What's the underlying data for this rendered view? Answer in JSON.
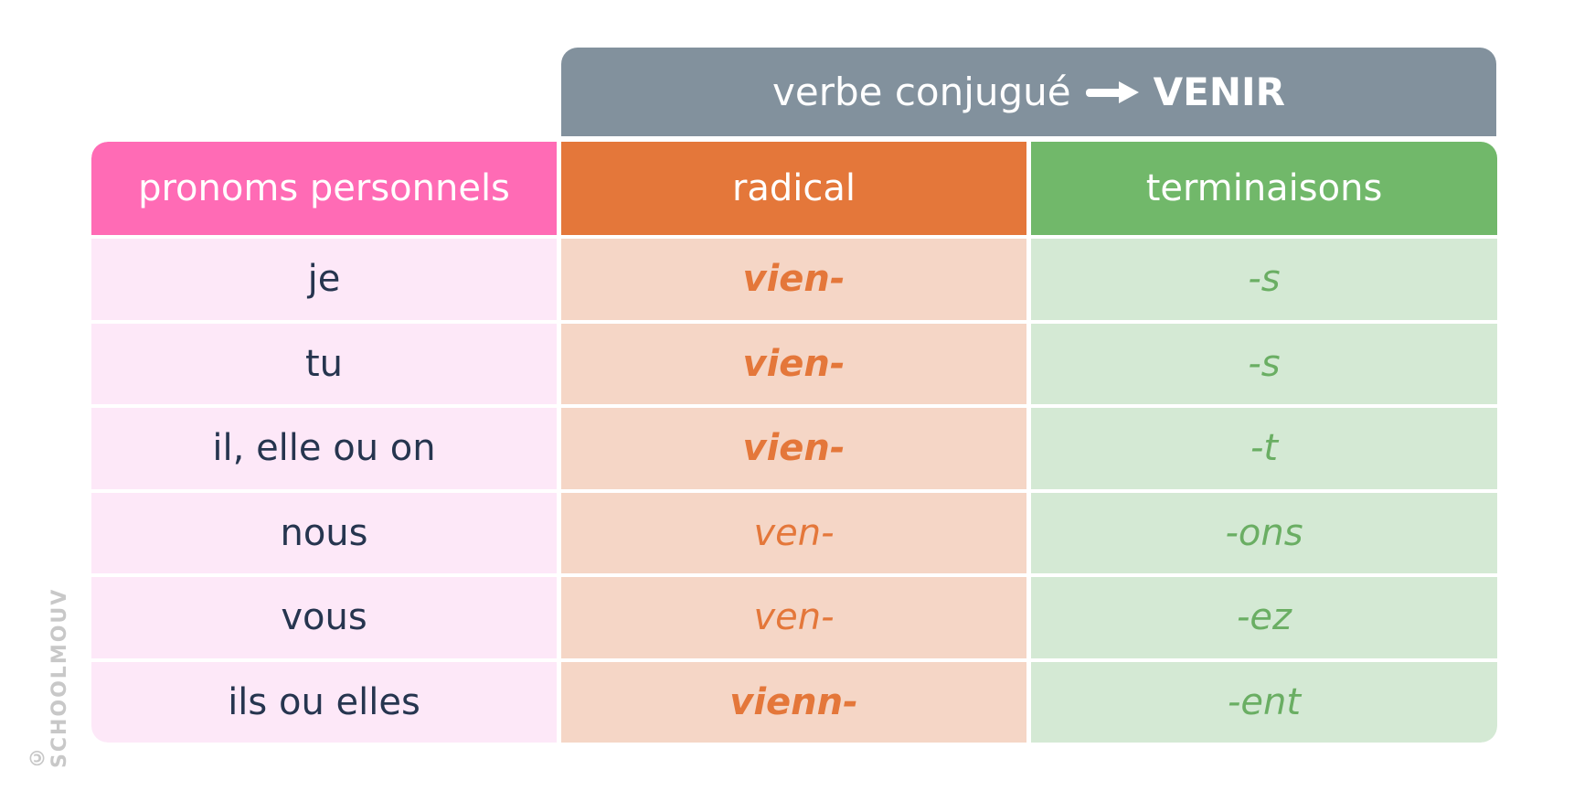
{
  "header": {
    "title": "verbe conjugué",
    "verb": "VENIR",
    "icon": "arrow-right-icon"
  },
  "columns": [
    "pronoms personnels",
    "radical",
    "terminaisons"
  ],
  "rows": [
    {
      "pronoun": "je",
      "radical": "vien-",
      "ending": "-s",
      "bold": true
    },
    {
      "pronoun": "tu",
      "radical": "vien-",
      "ending": "-s",
      "bold": true
    },
    {
      "pronoun": "il, elle ou on",
      "radical": "vien-",
      "ending": "-t",
      "bold": true
    },
    {
      "pronoun": "nous",
      "radical": "ven-",
      "ending": "-ons",
      "bold": false
    },
    {
      "pronoun": "vous",
      "radical": "ven-",
      "ending": "-ez",
      "bold": false
    },
    {
      "pronoun": "ils ou elles",
      "radical": "vienn-",
      "ending": "-ent",
      "bold": true
    }
  ],
  "watermark": "© SCHOOLMOUV",
  "colors": {
    "header": "#82919d",
    "pronoun": "#ff6bb5",
    "radical": "#e4773a",
    "ending": "#71b86a"
  }
}
